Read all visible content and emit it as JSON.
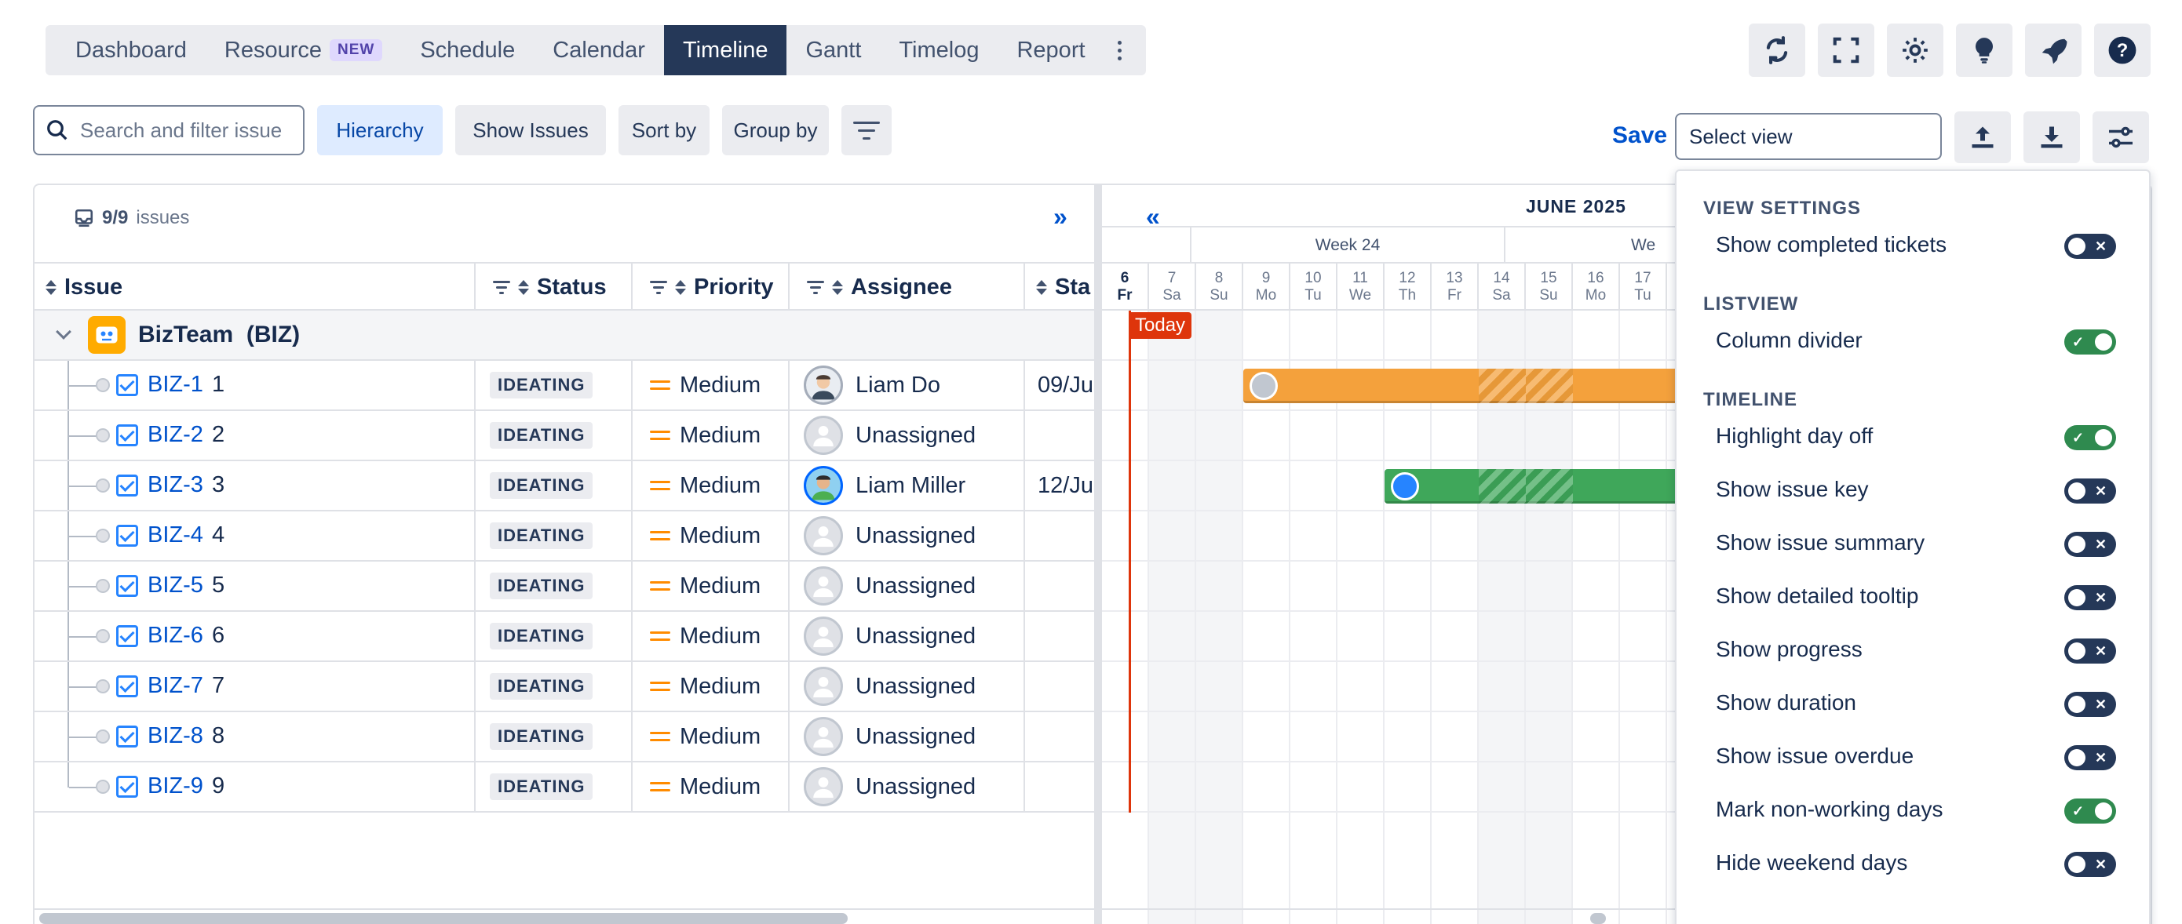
{
  "nav": {
    "tabs": [
      {
        "label": "Dashboard"
      },
      {
        "label": "Resource",
        "badge": "NEW"
      },
      {
        "label": "Schedule"
      },
      {
        "label": "Calendar"
      },
      {
        "label": "Timeline",
        "active": true
      },
      {
        "label": "Gantt"
      },
      {
        "label": "Timelog"
      },
      {
        "label": "Report"
      }
    ]
  },
  "top_icons": [
    "sync-icon",
    "fullscreen-icon",
    "gear-icon",
    "lightbulb-icon",
    "rocket-icon",
    "help-icon"
  ],
  "toolbar": {
    "search_placeholder": "Search and filter issue",
    "hierarchy": "Hierarchy",
    "show_issues": "Show Issues",
    "sort_by": "Sort by",
    "group_by": "Group by",
    "save": "Save",
    "select_view": "Select view"
  },
  "list": {
    "count": "9/9",
    "count_suffix": "issues",
    "columns": {
      "issue": "Issue",
      "status": "Status",
      "priority": "Priority",
      "assignee": "Assignee",
      "start": "Sta"
    },
    "group": {
      "name": "BizTeam",
      "key": "(BIZ)"
    },
    "rows": [
      {
        "key": "BIZ-1",
        "summary": "1",
        "status": "IDEATING",
        "priority": "Medium",
        "assignee": "Liam Do",
        "avatar": "photo",
        "start": "09/Ju"
      },
      {
        "key": "BIZ-2",
        "summary": "2",
        "status": "IDEATING",
        "priority": "Medium",
        "assignee": "Unassigned",
        "avatar": "none",
        "start": ""
      },
      {
        "key": "BIZ-3",
        "summary": "3",
        "status": "IDEATING",
        "priority": "Medium",
        "assignee": "Liam Miller",
        "avatar": "photo2",
        "start": "12/Ju"
      },
      {
        "key": "BIZ-4",
        "summary": "4",
        "status": "IDEATING",
        "priority": "Medium",
        "assignee": "Unassigned",
        "avatar": "none",
        "start": ""
      },
      {
        "key": "BIZ-5",
        "summary": "5",
        "status": "IDEATING",
        "priority": "Medium",
        "assignee": "Unassigned",
        "avatar": "none",
        "start": ""
      },
      {
        "key": "BIZ-6",
        "summary": "6",
        "status": "IDEATING",
        "priority": "Medium",
        "assignee": "Unassigned",
        "avatar": "none",
        "start": ""
      },
      {
        "key": "BIZ-7",
        "summary": "7",
        "status": "IDEATING",
        "priority": "Medium",
        "assignee": "Unassigned",
        "avatar": "none",
        "start": ""
      },
      {
        "key": "BIZ-8",
        "summary": "8",
        "status": "IDEATING",
        "priority": "Medium",
        "assignee": "Unassigned",
        "avatar": "none",
        "start": ""
      },
      {
        "key": "BIZ-9",
        "summary": "9",
        "status": "IDEATING",
        "priority": "Medium",
        "assignee": "Unassigned",
        "avatar": "none",
        "start": ""
      }
    ]
  },
  "timeline": {
    "month": "JUNE 2025",
    "weeks": [
      "Week 24",
      "We"
    ],
    "today_label": "Today",
    "days": [
      {
        "d": "6",
        "w": "Fr",
        "today": true
      },
      {
        "d": "7",
        "w": "Sa",
        "off": true
      },
      {
        "d": "8",
        "w": "Su",
        "off": true
      },
      {
        "d": "9",
        "w": "Mo"
      },
      {
        "d": "10",
        "w": "Tu"
      },
      {
        "d": "11",
        "w": "We"
      },
      {
        "d": "12",
        "w": "Th"
      },
      {
        "d": "13",
        "w": "Fr"
      },
      {
        "d": "14",
        "w": "Sa",
        "off": true
      },
      {
        "d": "15",
        "w": "Su",
        "off": true
      },
      {
        "d": "16",
        "w": "Mo"
      },
      {
        "d": "17",
        "w": "Tu"
      }
    ],
    "bars": [
      {
        "row": 0,
        "start_day": "9",
        "color": "#f4a13c"
      },
      {
        "row": 2,
        "start_day": "12",
        "color": "#3fa75a"
      }
    ]
  },
  "settings": {
    "sections": [
      {
        "title": "VIEW SETTINGS",
        "options": [
          {
            "label": "Show completed tickets",
            "on": false
          }
        ]
      },
      {
        "title": "LISTVIEW",
        "options": [
          {
            "label": "Column divider",
            "on": true
          }
        ]
      },
      {
        "title": "TIMELINE",
        "options": [
          {
            "label": "Highlight day off",
            "on": true
          },
          {
            "label": "Show issue key",
            "on": false
          },
          {
            "label": "Show issue summary",
            "on": false
          },
          {
            "label": "Show detailed tooltip",
            "on": false
          },
          {
            "label": "Show progress",
            "on": false
          },
          {
            "label": "Show duration",
            "on": false
          },
          {
            "label": "Show issue overdue",
            "on": false
          },
          {
            "label": "Mark non-working days",
            "on": true
          },
          {
            "label": "Hide weekend days",
            "on": false
          }
        ]
      }
    ]
  },
  "colors": {
    "accent": "#0052cc",
    "nav_active": "#253858",
    "today": "#de350b",
    "toggle_on": "#2f8a4f",
    "toggle_off": "#253858"
  }
}
